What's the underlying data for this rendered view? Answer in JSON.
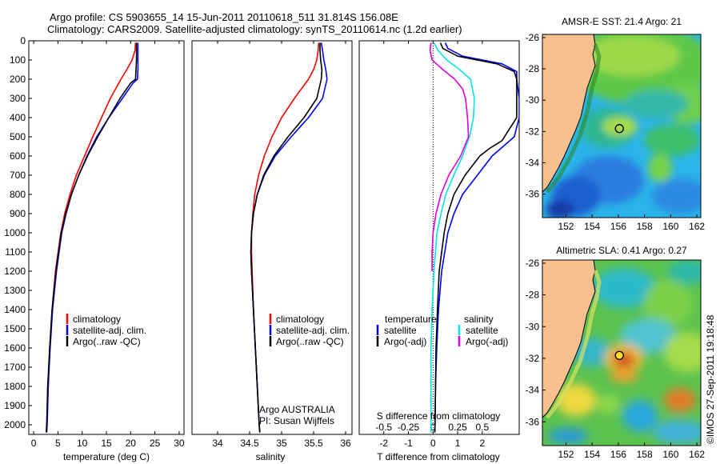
{
  "header": {
    "line1": "Argo profile: CS 5903655_14 15-Jun-2011 20110618_511 31.814S 156.08E",
    "line2": "Climatology: CARS2009. Satellite-adjusted climatology: synTS_20110614.nc (1.2d earlier)"
  },
  "colors": {
    "climatology": "#ff0000",
    "satellite": "#0000ff",
    "argo": "#000000",
    "sal_satellite": "#00e5e5",
    "sal_argo": "#e000e0",
    "land": "#f7c08e"
  },
  "watermark": "©IMOS 27-Sep-2011 19:18:48",
  "chart_data": [
    {
      "id": "temperature",
      "type": "line",
      "xlabel": "temperature (deg C)",
      "ylabel": "",
      "xlim": [
        -1,
        31
      ],
      "ylim": [
        2050,
        0
      ],
      "xticks": [
        0,
        5,
        10,
        15,
        20,
        25,
        30
      ],
      "yticks": [
        0,
        100,
        200,
        300,
        400,
        500,
        600,
        700,
        800,
        900,
        1000,
        1100,
        1200,
        1300,
        1400,
        1500,
        1600,
        1700,
        1800,
        1900,
        2000
      ],
      "legend": [
        "climatology",
        "satellite-adj. clim.",
        "Argo(..raw -QC)"
      ],
      "series": [
        {
          "name": "climatology",
          "color": "#ff0000",
          "y": [
            10,
            50,
            100,
            150,
            200,
            300,
            400,
            500,
            600,
            700,
            800,
            900,
            1000,
            1200,
            1400,
            1600,
            1800,
            2000,
            2040
          ],
          "x": [
            21.0,
            20.9,
            20.3,
            19.2,
            18.0,
            15.8,
            14.0,
            12.2,
            10.5,
            8.8,
            7.5,
            6.4,
            5.6,
            4.5,
            3.8,
            3.3,
            3.0,
            2.7,
            2.6
          ]
        },
        {
          "name": "satellite-adj. clim.",
          "color": "#0000ff",
          "y": [
            10,
            50,
            100,
            150,
            200,
            220,
            300,
            400,
            500,
            600,
            700,
            800,
            900,
            1000,
            1200,
            1400,
            1600,
            1800,
            2000,
            2040
          ],
          "x": [
            21.5,
            21.5,
            21.5,
            21.5,
            21.4,
            20.5,
            18.3,
            15.5,
            13.0,
            11.0,
            9.3,
            7.8,
            6.7,
            5.8,
            4.7,
            3.9,
            3.4,
            3.0,
            2.8,
            2.7
          ]
        },
        {
          "name": "Argo(..raw -QC)",
          "color": "#000000",
          "y": [
            10,
            50,
            100,
            150,
            200,
            220,
            300,
            400,
            500,
            600,
            700,
            800,
            900,
            1000,
            1200,
            1400,
            1600,
            1800,
            2000,
            2040
          ],
          "x": [
            21.2,
            21.2,
            21.2,
            21.1,
            21.0,
            20.0,
            17.8,
            15.5,
            13.2,
            11.1,
            9.3,
            7.8,
            6.6,
            5.7,
            4.6,
            3.8,
            3.3,
            2.9,
            2.7,
            2.6
          ]
        }
      ]
    },
    {
      "id": "salinity",
      "type": "line",
      "xlabel": "salinity",
      "ylabel": "",
      "xlim": [
        33.6,
        36.1
      ],
      "ylim": [
        2050,
        0
      ],
      "xticks": [
        34,
        34.5,
        35,
        35.5,
        36
      ],
      "legend": [
        "climatology",
        "satellite-adj. clim.",
        "Argo(..raw -QC)"
      ],
      "annotation": [
        "Argo AUSTRALIA",
        "PI: Susan Wijffels"
      ],
      "series": [
        {
          "name": "climatology",
          "color": "#ff0000",
          "y": [
            10,
            50,
            100,
            150,
            200,
            300,
            400,
            500,
            600,
            700,
            800,
            900,
            1000,
            1100,
            1200,
            1400,
            1600,
            1800,
            2000,
            2040
          ],
          "x": [
            35.58,
            35.57,
            35.55,
            35.5,
            35.42,
            35.2,
            35.0,
            34.85,
            34.73,
            34.64,
            34.58,
            34.55,
            34.53,
            34.53,
            34.54,
            34.56,
            34.59,
            34.62,
            34.65,
            34.66
          ]
        },
        {
          "name": "satellite-adj. clim.",
          "color": "#0000ff",
          "y": [
            10,
            50,
            100,
            150,
            200,
            300,
            400,
            500,
            600,
            700,
            800,
            900,
            1000,
            1100,
            1200,
            1400,
            1600,
            1800,
            2000,
            2040
          ],
          "x": [
            35.62,
            35.64,
            35.66,
            35.69,
            35.71,
            35.64,
            35.42,
            35.15,
            34.9,
            34.73,
            34.62,
            34.56,
            34.53,
            34.52,
            34.53,
            34.56,
            34.59,
            34.62,
            34.65,
            34.66
          ]
        },
        {
          "name": "Argo(..raw -QC)",
          "color": "#000000",
          "y": [
            10,
            50,
            100,
            150,
            200,
            300,
            400,
            500,
            600,
            700,
            800,
            900,
            1000,
            1100,
            1200,
            1400,
            1600,
            1800,
            2000,
            2040
          ],
          "x": [
            35.6,
            35.6,
            35.61,
            35.63,
            35.62,
            35.55,
            35.35,
            35.1,
            34.88,
            34.72,
            34.62,
            34.56,
            34.53,
            34.52,
            34.53,
            34.56,
            34.59,
            34.62,
            34.65,
            34.66
          ]
        }
      ]
    },
    {
      "id": "differences",
      "type": "line",
      "xlabel": "T difference from climatology",
      "xlabel_top": "S difference from climatology",
      "xlim": [
        -3,
        3.5
      ],
      "ylim": [
        2050,
        0
      ],
      "t_ticks": [
        -2,
        -1,
        0,
        1,
        2
      ],
      "s_ticks": [
        -0.5,
        -0.25,
        0,
        0.25,
        0.5
      ],
      "s_tick_labels": [
        "-0.5",
        "-0.25",
        "0",
        "0.25",
        "0.5"
      ],
      "legend_t_title": "temperature",
      "legend_s_title": "salinity",
      "legend": [
        "satellite",
        "Argo(-adj)",
        "satellite",
        "Argo(-adj)"
      ],
      "series": [
        {
          "name": "T satellite",
          "color": "#0000ff",
          "y": [
            10,
            40,
            80,
            120,
            160,
            200,
            300,
            400,
            500,
            600,
            700,
            800,
            900,
            1000,
            1200,
            1400,
            1600,
            1800,
            2000,
            2040
          ],
          "x": [
            0.5,
            0.6,
            1.2,
            2.8,
            3.4,
            3.4,
            3.5,
            3.5,
            3.3,
            2.4,
            1.8,
            1.2,
            0.85,
            0.6,
            0.35,
            0.22,
            0.15,
            0.1,
            0.08,
            0.07
          ]
        },
        {
          "name": "T Argo(-adj)",
          "color": "#000000",
          "y": [
            10,
            40,
            80,
            120,
            160,
            200,
            300,
            400,
            440,
            480,
            520,
            560,
            600,
            700,
            800,
            900,
            1000,
            1100,
            1200,
            1400,
            1600,
            1800,
            2000,
            2040
          ],
          "x": [
            0.3,
            0.4,
            1.0,
            2.6,
            3.3,
            3.4,
            3.4,
            3.4,
            3.2,
            3.0,
            2.8,
            2.3,
            1.9,
            1.3,
            0.85,
            0.6,
            0.45,
            0.35,
            0.25,
            0.18,
            0.12,
            0.1,
            0.08,
            0.07
          ]
        },
        {
          "name": "S satellite",
          "color": "#00e5e5",
          "y": [
            10,
            50,
            100,
            150,
            200,
            300,
            400,
            500,
            600,
            700,
            800,
            900,
            1000,
            1200,
            1400,
            1600,
            1800,
            2000,
            2040
          ],
          "x": [
            0.01,
            0.05,
            0.14,
            0.27,
            0.38,
            0.42,
            0.41,
            0.37,
            0.3,
            0.21,
            0.13,
            0.08,
            0.04,
            0.01,
            -0.01,
            -0.02,
            -0.02,
            -0.02,
            -0.02
          ]
        },
        {
          "name": "S Argo(-adj)",
          "color": "#e000e0",
          "y": [
            10,
            50,
            100,
            150,
            200,
            250,
            300,
            400,
            500,
            600,
            700,
            800,
            900,
            1000,
            1100,
            1200
          ],
          "x": [
            -0.02,
            -0.03,
            -0.01,
            0.1,
            0.22,
            0.3,
            0.33,
            0.35,
            0.36,
            0.28,
            0.16,
            0.08,
            0.03,
            0.0,
            -0.01,
            -0.01
          ]
        }
      ]
    },
    {
      "id": "sst_map",
      "type": "heatmap",
      "title": "AMSR-E SST: 21.4  Argo: 21",
      "xticks": [
        152,
        154,
        156,
        158,
        160,
        162
      ],
      "yticks": [
        -26,
        -28,
        -30,
        -32,
        -34,
        -36
      ],
      "xlim": [
        150.2,
        162.3
      ],
      "ylim": [
        -37.5,
        -25.8
      ],
      "marker": {
        "lon": 156.08,
        "lat": -31.814
      }
    },
    {
      "id": "sla_map",
      "type": "heatmap",
      "title": "Altimetric SLA: 0.41  Argo: 0.27",
      "xticks": [
        152,
        154,
        156,
        158,
        160,
        162
      ],
      "yticks": [
        -26,
        -28,
        -30,
        -32,
        -34,
        -36
      ],
      "xlim": [
        150.2,
        162.3
      ],
      "ylim": [
        -37.5,
        -25.8
      ],
      "marker": {
        "lon": 156.08,
        "lat": -31.814
      }
    }
  ]
}
